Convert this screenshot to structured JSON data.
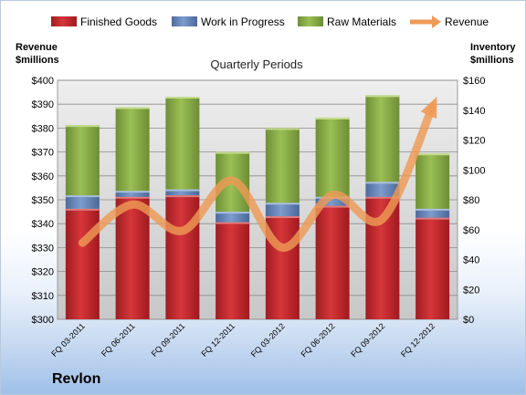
{
  "chart_data": {
    "type": "bar",
    "stacked": true,
    "categories": [
      "FQ 03-2011",
      "FQ 06-2011",
      "FQ 09-2011",
      "FQ 12-2011",
      "FQ 03-2012",
      "FQ 06-2012",
      "FQ 09-2012",
      "FQ 12-2012"
    ],
    "series": [
      {
        "name": "Finished Goods",
        "axis": "right",
        "color": "#c0272d",
        "values": [
          74,
          82,
          83,
          65,
          69,
          76,
          82,
          68
        ]
      },
      {
        "name": "Work in Progress",
        "axis": "right",
        "color": "#5f7fb3",
        "values": [
          9,
          4,
          4,
          7,
          9,
          6,
          10,
          6
        ]
      },
      {
        "name": "Raw Materials",
        "axis": "right",
        "color": "#86a844",
        "values": [
          47,
          56,
          62,
          40,
          50,
          53,
          58,
          37
        ]
      }
    ],
    "line_series": {
      "name": "Revenue",
      "axis": "left",
      "color": "#f0a060",
      "values": [
        332,
        348,
        337,
        358,
        330,
        352,
        342,
        389
      ]
    },
    "subtitle": "Quarterly Periods",
    "ylabel_left": "Revenue\n$millions",
    "ylabel_right": "Inventory\n$millions",
    "ylim_left": [
      300,
      400
    ],
    "ylim_right": [
      0,
      160
    ],
    "yticks_left": [
      "$300",
      "$310",
      "$320",
      "$330",
      "$340",
      "$350",
      "$360",
      "$370",
      "$380",
      "$390",
      "$400"
    ],
    "yticks_right": [
      "$0",
      "$20",
      "$40",
      "$60",
      "$80",
      "$100",
      "$120",
      "$140",
      "$160"
    ],
    "grid": true,
    "legend": "top"
  },
  "company": "Revlon"
}
